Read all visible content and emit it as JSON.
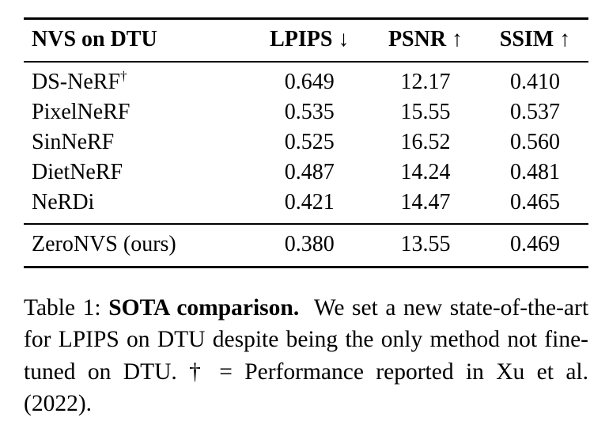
{
  "colors": {
    "background": "#ffffff",
    "text": "#000000"
  },
  "table": {
    "headers": {
      "col0": "NVS on DTU",
      "col1": "LPIPS ↓",
      "col2": "PSNR ↑",
      "col3": "SSIM ↑"
    },
    "rows": [
      {
        "method": "DS-NeRF",
        "dagger": "†",
        "lpips": "0.649",
        "psnr": "12.17",
        "ssim": "0.410"
      },
      {
        "method": "PixelNeRF",
        "lpips": "0.535",
        "psnr": "15.55",
        "ssim": "0.537"
      },
      {
        "method": "SinNeRF",
        "lpips": "0.525",
        "psnr": "16.52",
        "ssim": "0.560"
      },
      {
        "method": "DietNeRF",
        "lpips": "0.487",
        "psnr": "14.24",
        "ssim": "0.481"
      },
      {
        "method": "NeRDi",
        "lpips": "0.421",
        "psnr": "14.47",
        "ssim": "0.465"
      }
    ],
    "final_row": {
      "method": "ZeroNVS (ours)",
      "lpips": "0.380",
      "psnr": "13.55",
      "ssim": "0.469"
    }
  },
  "caption": {
    "label": "Table 1:",
    "title": "SOTA comparison.",
    "body": "We set a new state-of-the-art for LPIPS on DTU despite being the only method not fine-tuned on DTU. † = Performance reported in Xu et al. (2022)."
  }
}
